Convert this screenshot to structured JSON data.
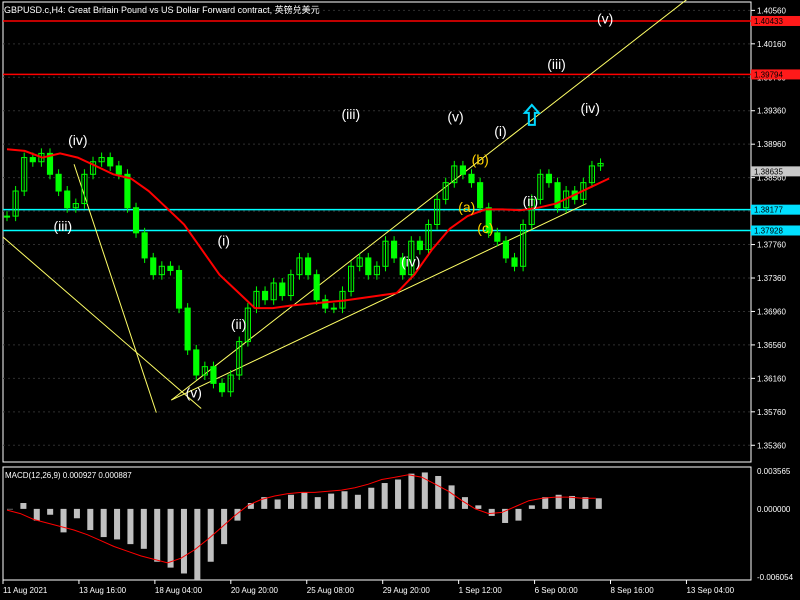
{
  "header": {
    "title": "GBPUSD.c,H4:  Great Britain Pound vs US Dollar Forward contract,  英镑兑美元"
  },
  "colors": {
    "background": "#000000",
    "grid": "#2f2f2f",
    "candle": "#00ff00",
    "ma": "#ff0000",
    "support_line": "#00ffff",
    "resistance_line": "#ff0000",
    "trend_line": "#ffff66",
    "wave_label": "#ffffff",
    "sub_wave_label": "#ffd200",
    "arrow": "#00d8ff",
    "price_tag_red": "#ff1a1a",
    "price_tag_cyan": "#00e0ff",
    "price_tag_gray": "#c8c8c8",
    "macd_hist": "#c0c0c0",
    "macd_signal": "#ff0000",
    "axis_text": "#ffffff"
  },
  "chart_data": {
    "type": "candlestick",
    "symbol": "GBPUSD.c",
    "timeframe": "H4",
    "ylim": [
      1.3516,
      1.4066
    ],
    "price_ticks": [
      "1.40560",
      "1.40160",
      "1.39760",
      "1.39360",
      "1.38960",
      "1.38560",
      "1.38160",
      "1.37760",
      "1.37360",
      "1.36960",
      "1.36560",
      "1.36160",
      "1.35760",
      "1.35360"
    ],
    "x_labels": [
      "11 Aug 2021",
      "13 Aug 16:00",
      "18 Aug 04:00",
      "20 Aug 20:00",
      "25 Aug 08:00",
      "29 Aug 20:00",
      "1 Sep 12:00",
      "6 Sep 00:00",
      "8 Sep 16:00",
      "13 Sep 04:00"
    ],
    "close_series": [
      1.381,
      1.384,
      1.388,
      1.3875,
      1.3885,
      1.386,
      1.384,
      1.382,
      1.3825,
      1.386,
      1.3875,
      1.388,
      1.387,
      1.386,
      1.382,
      1.379,
      1.376,
      1.374,
      1.375,
      1.3745,
      1.37,
      1.365,
      1.362,
      1.363,
      1.361,
      1.36,
      1.362,
      1.366,
      1.37,
      1.372,
      1.371,
      1.373,
      1.3715,
      1.374,
      1.376,
      1.374,
      1.371,
      1.37,
      1.37,
      1.372,
      1.375,
      1.376,
      1.374,
      1.375,
      1.378,
      1.376,
      1.374,
      1.378,
      1.377,
      1.38,
      1.383,
      1.385,
      1.387,
      1.386,
      1.385,
      1.382,
      1.379,
      1.378,
      1.376,
      1.375,
      1.38,
      1.383,
      1.386,
      1.385,
      1.382,
      1.384,
      1.383,
      1.385,
      1.387,
      1.3873
    ],
    "ma_series": [
      1.389,
      1.3888,
      1.388,
      1.3885,
      1.388,
      1.387,
      1.386,
      1.3855,
      1.384,
      1.382,
      1.38,
      1.377,
      1.374,
      1.372,
      1.37,
      1.37,
      1.3703,
      1.3705,
      1.3707,
      1.3709,
      1.3712,
      1.3715,
      1.3718,
      1.374,
      1.377,
      1.3795,
      1.381,
      1.3818,
      1.3818,
      1.3817,
      1.382,
      1.3825,
      1.3835,
      1.3845,
      1.3855
    ],
    "horizontal_levels": [
      {
        "price": 1.40433,
        "label": "1.40433",
        "style": "resistance"
      },
      {
        "price": 1.39794,
        "label": "1.39794",
        "style": "resistance"
      },
      {
        "price": 1.38177,
        "label": "1.38177",
        "style": "support"
      },
      {
        "price": 1.37928,
        "label": "1.37928",
        "style": "support"
      }
    ],
    "current_price": {
      "price": 1.38635,
      "label": "1.38635"
    },
    "trend_lines": [
      {
        "from": [
          0,
          1.3785
        ],
        "to": [
          0.265,
          1.358
        ]
      },
      {
        "from": [
          0.225,
          1.359
        ],
        "to": [
          0.93,
          1.408
        ]
      },
      {
        "from": [
          0.225,
          1.359
        ],
        "to": [
          0.78,
          1.3825
        ]
      },
      {
        "from": [
          0.095,
          1.3872
        ],
        "to": [
          0.205,
          1.3575
        ]
      }
    ],
    "wave_labels": [
      {
        "text": "(iv)",
        "x": 0.1,
        "price": 1.3895,
        "tone": "white"
      },
      {
        "text": "(iii)",
        "x": 0.08,
        "price": 1.3792,
        "tone": "white"
      },
      {
        "text": "(v)",
        "x": 0.255,
        "price": 1.3593,
        "tone": "white"
      },
      {
        "text": "(i)",
        "x": 0.295,
        "price": 1.3775,
        "tone": "white"
      },
      {
        "text": "(ii)",
        "x": 0.315,
        "price": 1.3675,
        "tone": "white"
      },
      {
        "text": "(iii)",
        "x": 0.465,
        "price": 1.3926,
        "tone": "white"
      },
      {
        "text": "(iv)",
        "x": 0.545,
        "price": 1.375,
        "tone": "white"
      },
      {
        "text": "(v)",
        "x": 0.605,
        "price": 1.3923,
        "tone": "white"
      },
      {
        "text": "(i)",
        "x": 0.665,
        "price": 1.3906,
        "tone": "white"
      },
      {
        "text": "(b)",
        "x": 0.638,
        "price": 1.3872,
        "tone": "yellow"
      },
      {
        "text": "(a)",
        "x": 0.62,
        "price": 1.3815,
        "tone": "yellow"
      },
      {
        "text": "(c)",
        "x": 0.645,
        "price": 1.379,
        "tone": "yellow"
      },
      {
        "text": "(ii)",
        "x": 0.705,
        "price": 1.3822,
        "tone": "white"
      },
      {
        "text": "(iii)",
        "x": 0.74,
        "price": 1.3986,
        "tone": "white"
      },
      {
        "text": "(iv)",
        "x": 0.785,
        "price": 1.3933,
        "tone": "white"
      },
      {
        "text": "(v)",
        "x": 0.805,
        "price": 1.404,
        "tone": "white"
      }
    ],
    "arrow": {
      "x": 0.707,
      "price": 1.3931,
      "direction": "up"
    },
    "macd": {
      "label": "MACD(12,26,9) 0.000927 0.000887",
      "ticks": [
        "0.003565",
        "0.000000",
        "-0.006054"
      ],
      "ylim": [
        -0.006054,
        0.003565
      ],
      "hist": [
        0.0,
        0.0005,
        -0.001,
        -0.0005,
        -0.002,
        -0.0008,
        -0.0018,
        -0.0024,
        -0.0026,
        -0.003,
        -0.0034,
        -0.0045,
        -0.005,
        -0.0055,
        -0.006,
        -0.0045,
        -0.003,
        -0.001,
        0.0005,
        0.001,
        0.0008,
        0.0012,
        0.0014,
        0.001,
        0.0013,
        0.0015,
        0.0012,
        0.0018,
        0.0022,
        0.0025,
        0.003,
        0.0031,
        0.0028,
        0.002,
        0.001,
        0.0003,
        -0.0006,
        -0.0012,
        -0.001,
        0.0003,
        0.001,
        0.0012,
        0.0011,
        0.001,
        0.0009
      ],
      "signal": [
        -0.0001,
        -0.0004,
        -0.0009,
        -0.0012,
        -0.0015,
        -0.0018,
        -0.0022,
        -0.0027,
        -0.0032,
        -0.0036,
        -0.004,
        -0.0043,
        -0.0046,
        -0.0042,
        -0.0035,
        -0.0026,
        -0.0016,
        -0.0006,
        0.0003,
        0.0008,
        0.0011,
        0.0013,
        0.0014,
        0.0014,
        0.0015,
        0.0016,
        0.0018,
        0.0021,
        0.0025,
        0.0027,
        0.0029,
        0.0027,
        0.0021,
        0.0015,
        0.0007,
        0.0,
        -0.0004,
        -0.0003,
        0.0002,
        0.0007,
        0.0009,
        0.001,
        0.001,
        0.0009,
        0.0009
      ]
    }
  }
}
